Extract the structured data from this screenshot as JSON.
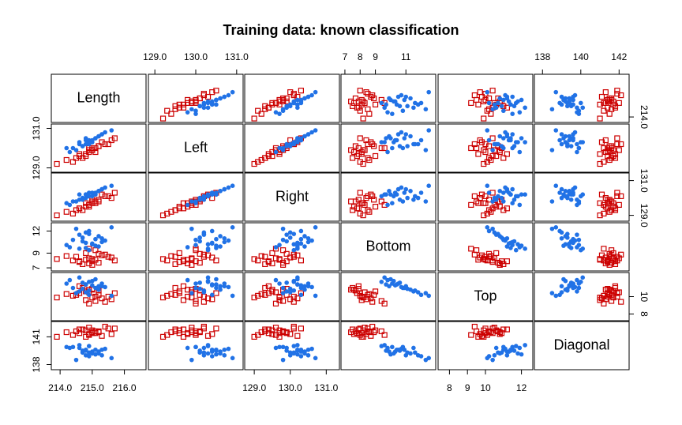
{
  "chart_data": {
    "type": "scatter_matrix",
    "title": "Training data: known classification",
    "variables": [
      {
        "name": "Length",
        "lim": [
          213.8,
          216.6
        ],
        "xticks": [
          {
            "value": 214,
            "label": "214.0"
          },
          {
            "value": 215,
            "label": "215.0"
          },
          {
            "value": 216,
            "label": "216.0"
          }
        ],
        "yticks": [
          {
            "value": 214,
            "label": "214.0"
          }
        ]
      },
      {
        "name": "Left",
        "lim": [
          128.9,
          131.1
        ],
        "xticks": [
          {
            "value": 129,
            "label": "129.0"
          },
          {
            "value": 130,
            "label": "130.0"
          },
          {
            "value": 131,
            "label": "131.0"
          }
        ],
        "yticks": [
          {
            "value": 129,
            "label": "129.0"
          },
          {
            "value": 131,
            "label": "131.0"
          }
        ]
      },
      {
        "name": "Right",
        "lim": [
          128.8,
          131.3
        ],
        "xticks": [
          {
            "value": 129,
            "label": "129.0"
          },
          {
            "value": 130,
            "label": "130.0"
          },
          {
            "value": 131,
            "label": "131.0"
          }
        ],
        "yticks": [
          {
            "value": 129,
            "label": "129.0"
          },
          {
            "value": 131,
            "label": "131.0"
          }
        ]
      },
      {
        "name": "Bottom",
        "lim": [
          6.9,
          12.8
        ],
        "xticks": [
          7,
          8,
          9,
          11
        ],
        "yticks": [
          7,
          9,
          12
        ]
      },
      {
        "name": "Top",
        "lim": [
          7.5,
          12.5
        ],
        "xticks": [
          8,
          9,
          10,
          12
        ],
        "yticks": [
          8,
          10
        ]
      },
      {
        "name": "Diagonal",
        "lim": [
          137.7,
          142.4
        ],
        "xticks": [
          138,
          140,
          142
        ],
        "yticks": [
          138,
          141
        ]
      }
    ],
    "series": [
      {
        "color": "#cc0000",
        "marker": "square",
        "values": [
          [
            214.8,
            215.0,
            214.6,
            215.2,
            214.9,
            215.5,
            214.4,
            215.1,
            214.7,
            215.3,
            214.9,
            215.0,
            214.2,
            215.6,
            214.8,
            215.2,
            213.9,
            215.4,
            214.6,
            215.1,
            214.9,
            215.7,
            214.5,
            215.0
          ],
          [
            129.7,
            129.9,
            129.6,
            130.1,
            129.8,
            130.2,
            129.3,
            130.0,
            129.5,
            130.3,
            129.9,
            130.0,
            129.4,
            130.4,
            129.6,
            130.1,
            129.2,
            130.2,
            129.7,
            129.8,
            130.0,
            130.5,
            129.5,
            129.9
          ],
          [
            129.7,
            129.7,
            129.4,
            129.9,
            129.5,
            130.1,
            129.1,
            129.8,
            129.3,
            130.2,
            129.6,
            129.9,
            129.2,
            130.0,
            129.5,
            129.8,
            129.0,
            130.1,
            129.4,
            129.7,
            129.6,
            130.3,
            129.3,
            129.8
          ],
          [
            8.1,
            8.2,
            7.8,
            8.9,
            7.6,
            8.5,
            8.0,
            9.4,
            7.5,
            8.7,
            8.3,
            7.9,
            8.6,
            8.4,
            9.0,
            7.7,
            8.2,
            8.8,
            7.9,
            8.1,
            9.6,
            8.0,
            8.5,
            7.4
          ],
          [
            9.6,
            9.9,
            10.4,
            10.2,
            10.8,
            10.0,
            10.1,
            9.5,
            11.0,
            9.8,
            10.5,
            10.9,
            10.3,
            9.7,
            10.6,
            10.7,
            9.9,
            9.4,
            11.2,
            10.0,
            9.2,
            10.4,
            10.2,
            10.8
          ],
          [
            141.0,
            141.7,
            141.4,
            141.5,
            141.3,
            141.9,
            141.2,
            141.6,
            141.8,
            141.1,
            142.0,
            141.4,
            141.5,
            141.3,
            141.7,
            141.6,
            141.0,
            142.1,
            141.8,
            141.4,
            141.2,
            141.9,
            141.6,
            141.5
          ]
        ]
      },
      {
        "color": "#2172e6",
        "marker": "circle",
        "values": [
          [
            214.8,
            215.0,
            214.6,
            215.2,
            214.4,
            214.9,
            215.3,
            214.7,
            215.1,
            214.5,
            214.9,
            215.4,
            214.8,
            215.0,
            214.3,
            215.2,
            214.7,
            215.6,
            214.6,
            215.1,
            214.9,
            214.2,
            215.3,
            214.8
          ],
          [
            130.5,
            130.3,
            130.2,
            130.6,
            130.0,
            130.4,
            130.7,
            130.1,
            130.5,
            129.9,
            130.3,
            130.8,
            130.2,
            130.4,
            129.8,
            130.6,
            130.1,
            130.9,
            130.3,
            130.5,
            130.2,
            130.0,
            130.7,
            130.4
          ],
          [
            130.2,
            130.1,
            129.9,
            130.4,
            129.8,
            130.3,
            130.5,
            130.0,
            130.2,
            129.8,
            130.1,
            130.6,
            130.0,
            130.3,
            129.6,
            130.4,
            129.9,
            130.7,
            130.2,
            130.3,
            130.1,
            129.7,
            130.5,
            130.2
          ],
          [
            9.7,
            10.2,
            11.5,
            9.9,
            10.8,
            12.0,
            10.5,
            11.1,
            10.0,
            12.3,
            9.4,
            10.7,
            11.8,
            10.3,
            9.8,
            11.3,
            10.6,
            12.5,
            9.6,
            10.9,
            11.6,
            10.1,
            11.0,
            10.4
          ],
          [
            11.4,
            11.8,
            10.6,
            11.2,
            11.0,
            10.2,
            11.5,
            10.9,
            12.0,
            10.4,
            11.7,
            11.1,
            10.5,
            11.3,
            11.9,
            10.8,
            11.6,
            10.1,
            12.2,
            11.0,
            10.7,
            11.5,
            11.2,
            11.4
          ],
          [
            139.5,
            139.2,
            139.8,
            139.4,
            139.9,
            138.9,
            139.6,
            139.3,
            139.1,
            138.5,
            140.0,
            139.7,
            139.0,
            139.4,
            139.8,
            139.2,
            139.5,
            138.7,
            140.1,
            139.6,
            139.3,
            139.9,
            139.0,
            139.6
          ]
        ]
      }
    ]
  }
}
